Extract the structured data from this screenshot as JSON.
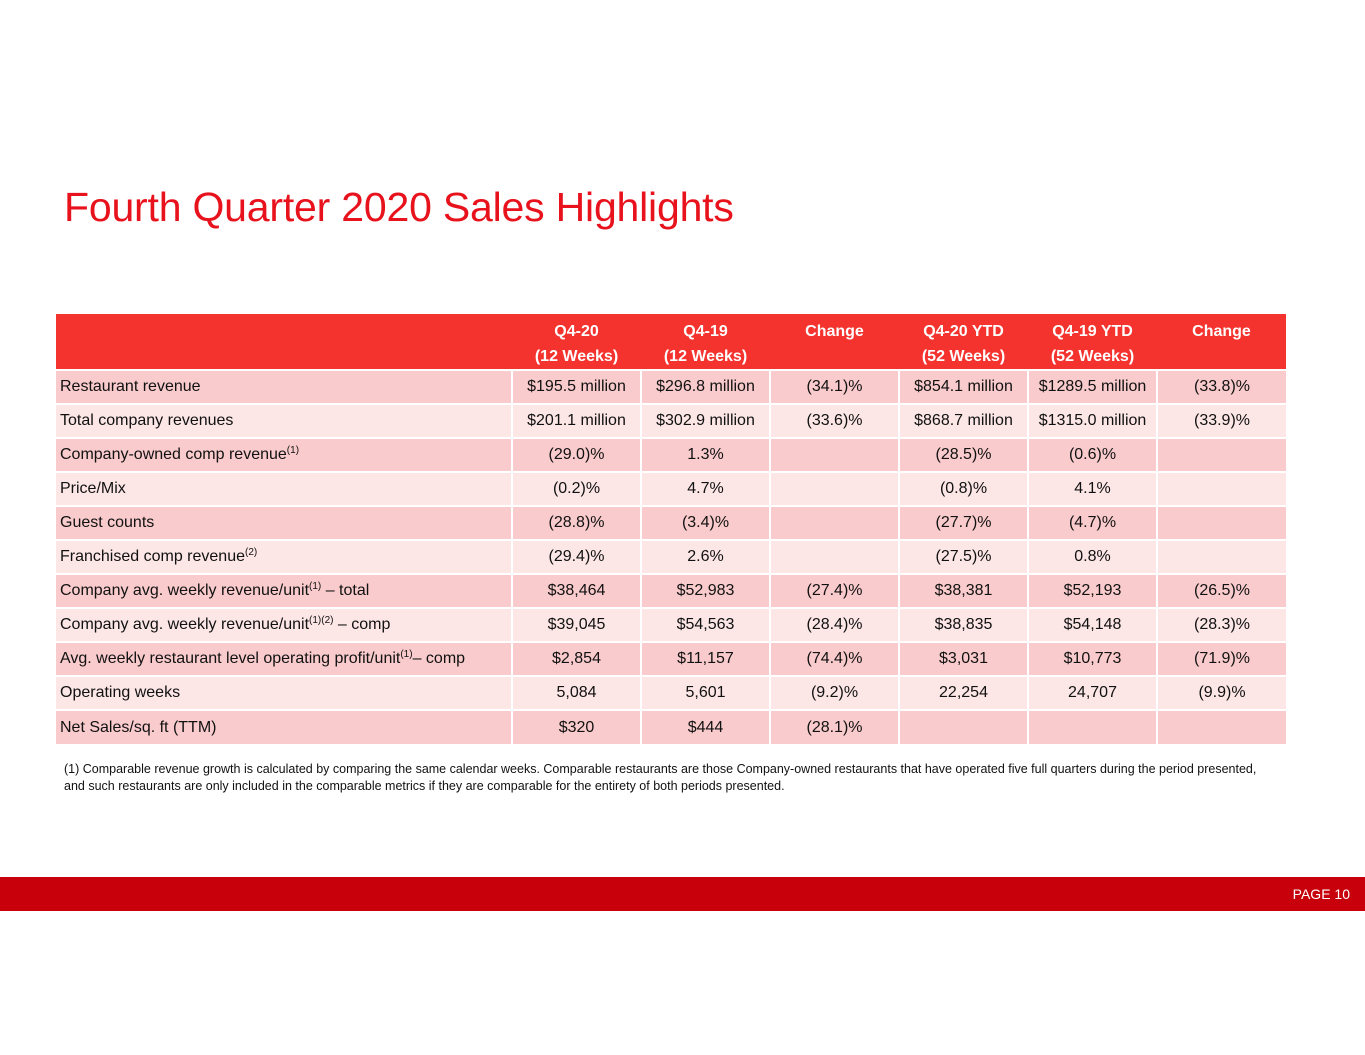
{
  "title": "Fourth Quarter 2020 Sales Highlights",
  "table": {
    "headers": [
      {
        "line1": "",
        "line2": ""
      },
      {
        "line1": "Q4-20",
        "line2": "(12 Weeks)"
      },
      {
        "line1": "Q4-19",
        "line2": "(12 Weeks)"
      },
      {
        "line1": "Change",
        "line2": ""
      },
      {
        "line1": "Q4-20 YTD",
        "line2": "(52 Weeks)"
      },
      {
        "line1": "Q4-19 YTD",
        "line2": "(52 Weeks)"
      },
      {
        "line1": "Change",
        "line2": ""
      }
    ],
    "rows": [
      {
        "label": "Restaurant revenue",
        "sup": "",
        "suffix": "",
        "cells": [
          "$195.5 million",
          "$296.8 million",
          "(34.1)%",
          "$854.1 million",
          "$1289.5 million",
          "(33.8)%"
        ]
      },
      {
        "label": "Total company revenues",
        "sup": "",
        "suffix": "",
        "cells": [
          "$201.1 million",
          "$302.9 million",
          "(33.6)%",
          "$868.7 million",
          "$1315.0 million",
          "(33.9)%"
        ]
      },
      {
        "label": "Company-owned comp revenue",
        "sup": "(1)",
        "suffix": "",
        "cells": [
          "(29.0)%",
          "1.3%",
          "",
          "(28.5)%",
          "(0.6)%",
          ""
        ]
      },
      {
        "label": "Price/Mix",
        "sup": "",
        "suffix": "",
        "cells": [
          "(0.2)%",
          "4.7%",
          "",
          "(0.8)%",
          "4.1%",
          ""
        ]
      },
      {
        "label": "Guest counts",
        "sup": "",
        "suffix": "",
        "cells": [
          "(28.8)%",
          "(3.4)%",
          "",
          "(27.7)%",
          "(4.7)%",
          ""
        ]
      },
      {
        "label": "Franchised comp revenue",
        "sup": "(2)",
        "suffix": "",
        "cells": [
          "(29.4)%",
          "2.6%",
          "",
          "(27.5)%",
          "0.8%",
          ""
        ]
      },
      {
        "label": "Company avg. weekly revenue/unit",
        "sup": "(1)",
        "suffix": " – total",
        "cells": [
          "$38,464",
          "$52,983",
          "(27.4)%",
          "$38,381",
          "$52,193",
          "(26.5)%"
        ]
      },
      {
        "label": "Company avg. weekly revenue/unit",
        "sup": "(1)(2)",
        "suffix": " – comp",
        "cells": [
          "$39,045",
          "$54,563",
          "(28.4)%",
          "$38,835",
          "$54,148",
          "(28.3)%"
        ]
      },
      {
        "label": "Avg. weekly restaurant level operating profit/unit",
        "sup": "(1)",
        "suffix": "– comp",
        "cells": [
          "$2,854",
          "$11,157",
          "(74.4)%",
          "$3,031",
          "$10,773",
          "(71.9)%"
        ]
      },
      {
        "label": "Operating weeks",
        "sup": "",
        "suffix": "",
        "cells": [
          "5,084",
          "5,601",
          "(9.2)%",
          "22,254",
          "24,707",
          "(9.9)%"
        ]
      },
      {
        "label": "Net Sales/sq. ft (TTM)",
        "sup": "",
        "suffix": "",
        "cells": [
          "$320",
          "$444",
          "(28.1)%",
          "",
          "",
          ""
        ]
      }
    ]
  },
  "footnote": "(1)  Comparable revenue growth is calculated by comparing the same calendar weeks. Comparable restaurants are those Company-owned restaurants that have operated five full quarters during the period presented, and such restaurants are only included in the comparable metrics if they are comparable for the entirety of both periods presented.",
  "footer": {
    "page_label": "PAGE 10"
  },
  "colors": {
    "title": "#e8121c",
    "header_bg": "#f5332e",
    "row_odd": "#f9cbcc",
    "row_even": "#fce6e6",
    "footer_bar": "#c7000b"
  }
}
